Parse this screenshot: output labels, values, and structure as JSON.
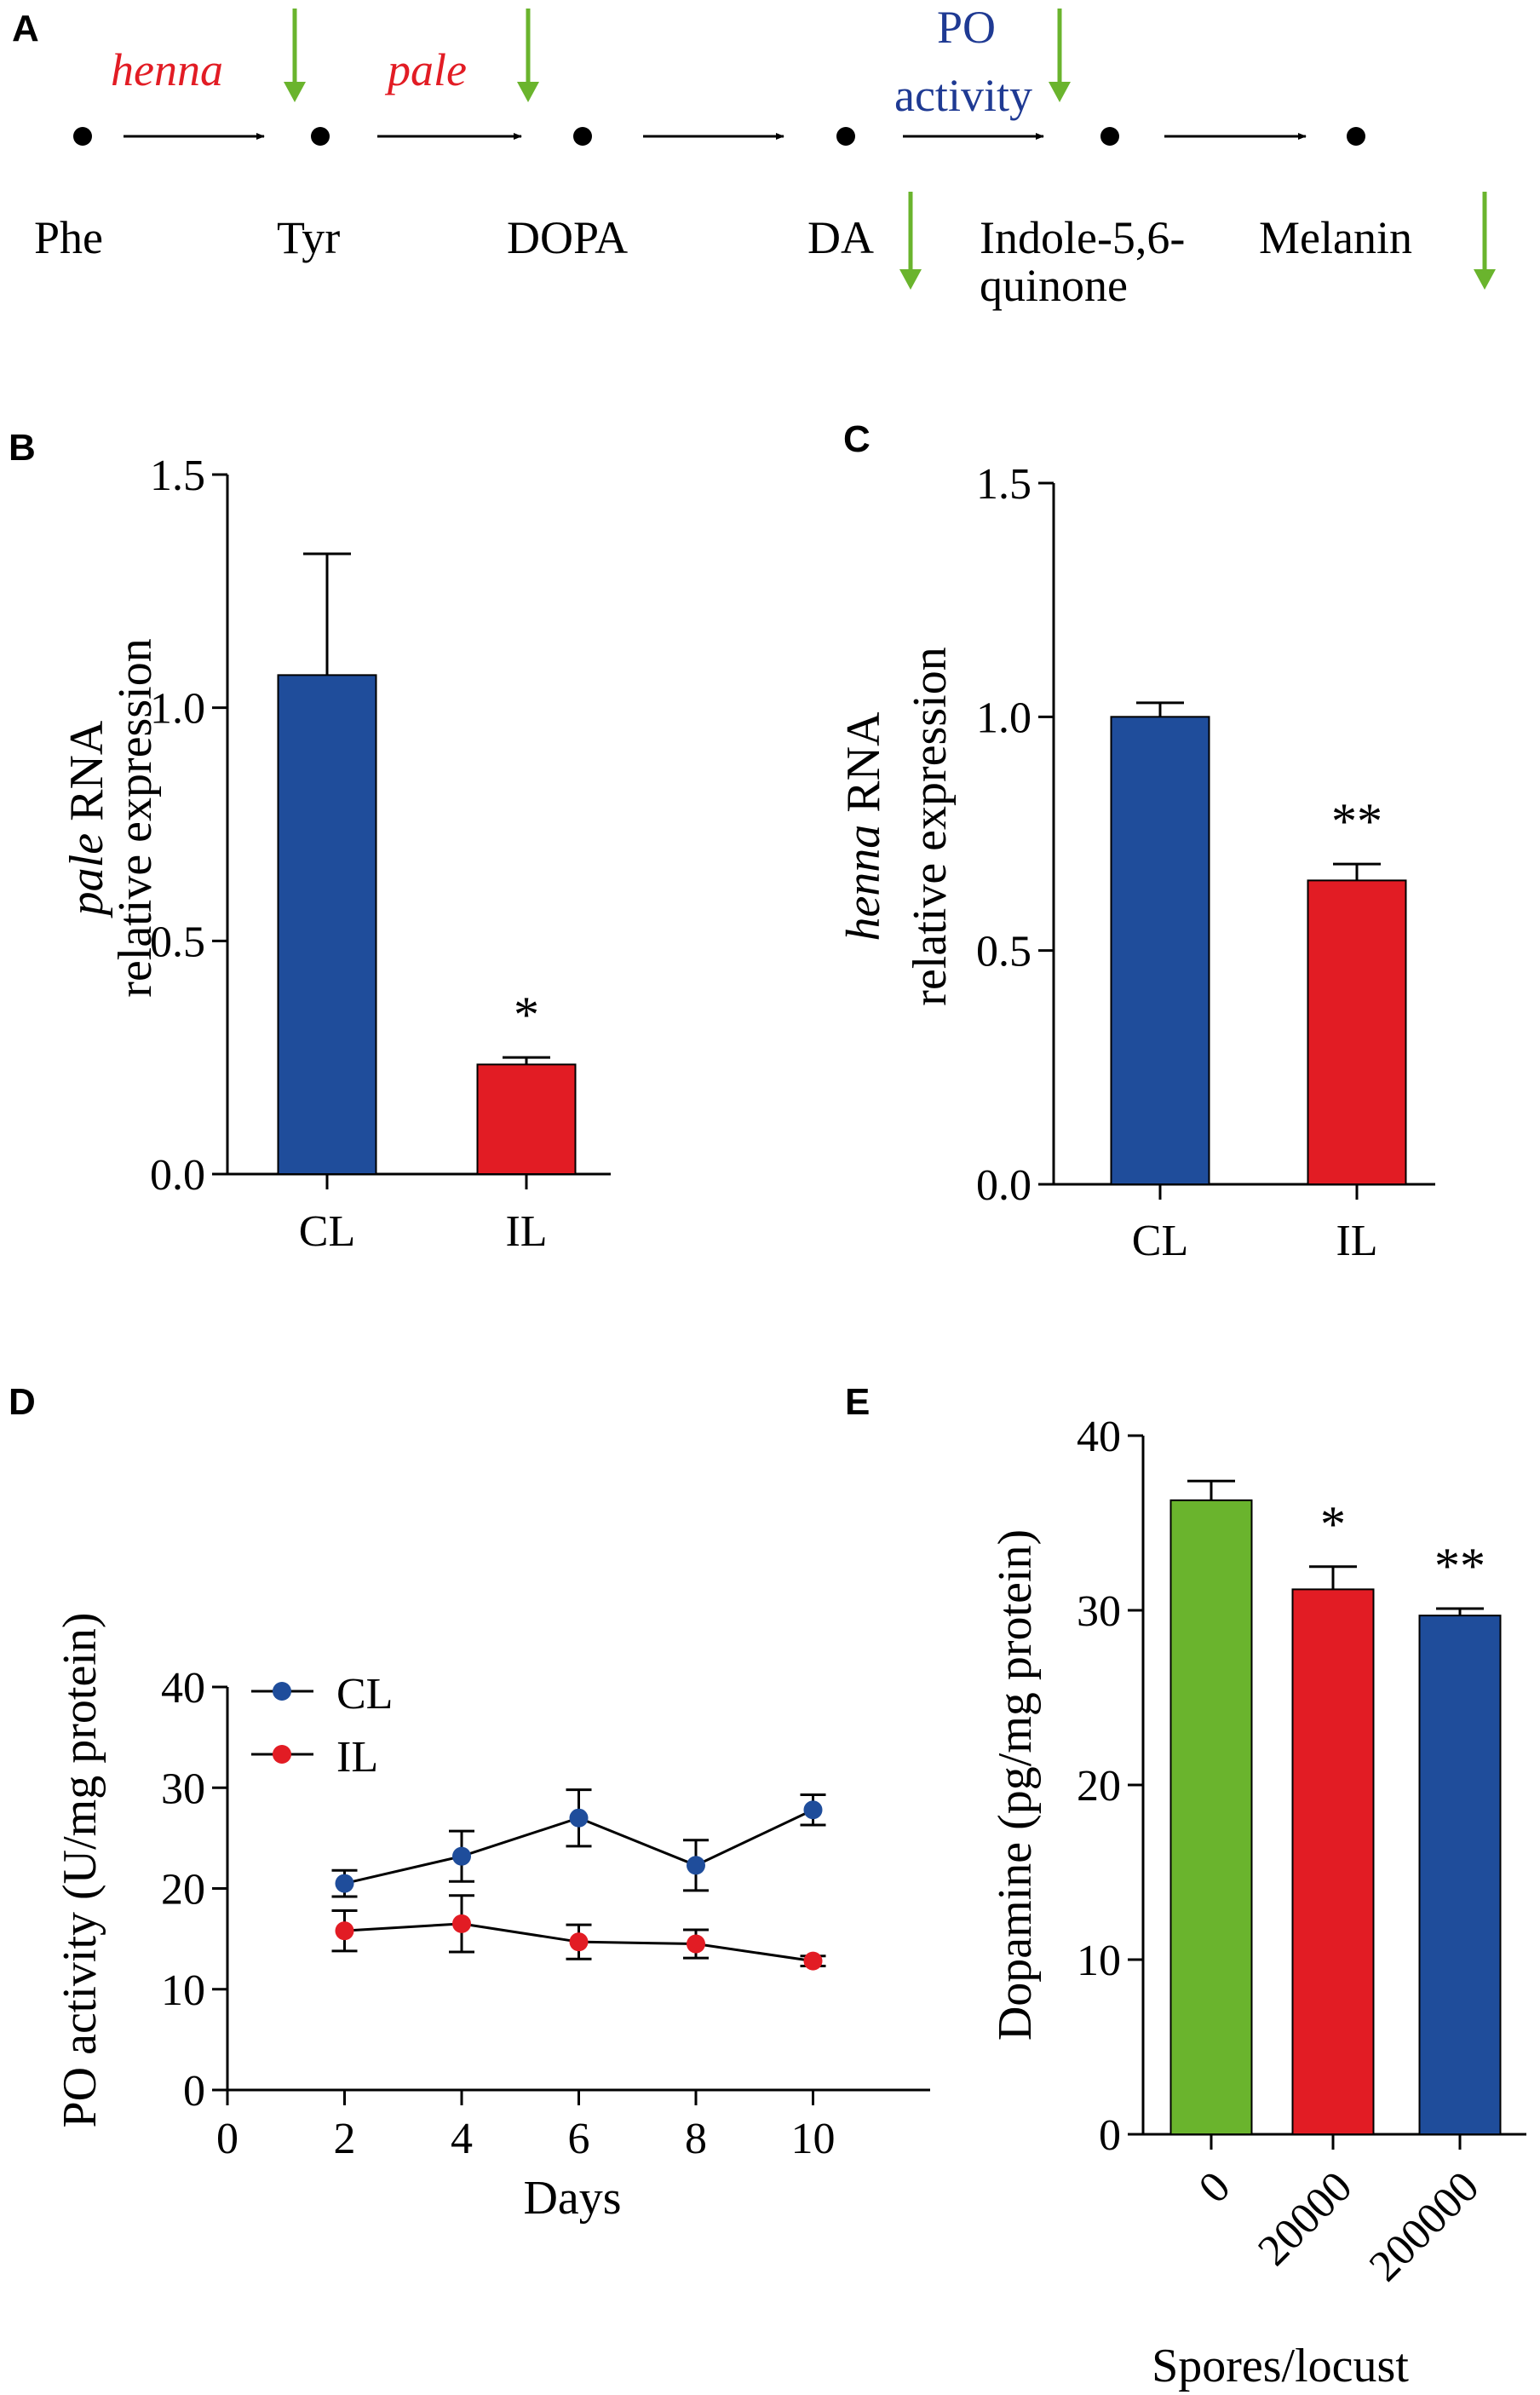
{
  "panels": {
    "A": "A",
    "B": "B",
    "C": "C",
    "D": "D",
    "E": "E"
  },
  "colors": {
    "blue": "#1f4d9b",
    "red": "#e21c24",
    "green": "#6ab42d",
    "arrow_green": "#6ab42d",
    "enzyme_red": "#e21c24",
    "enzyme_blue": "#1f3a93"
  },
  "pathway": {
    "compounds": [
      "Phe",
      "Tyr",
      "DOPA",
      "DA",
      "Indole-5,6-\nquinone",
      "Melanin"
    ],
    "compound_lines": [
      [
        "Phe"
      ],
      [
        "Tyr"
      ],
      [
        "DOPA"
      ],
      [
        "DA"
      ],
      [
        "Indole-5,6-",
        "quinone"
      ],
      [
        "Melanin"
      ]
    ],
    "enzymes": [
      {
        "step": 0,
        "lines": [
          "henna"
        ],
        "color": "red",
        "italic": true
      },
      {
        "step": 1,
        "lines": [
          "pale"
        ],
        "color": "red",
        "italic": true
      },
      {
        "step": 3,
        "lines": [
          "PO",
          "activity"
        ],
        "color": "blue",
        "italic": false
      }
    ],
    "down_arrows_on_steps": [
      0,
      1,
      3
    ],
    "down_arrows_on_compounds": [
      3,
      5
    ]
  },
  "chart_data": [
    {
      "id": "B",
      "type": "bar",
      "categories": [
        "CL",
        "IL"
      ],
      "values": [
        1.07,
        0.235
      ],
      "errors": [
        0.26,
        0.015
      ],
      "colors": [
        "blue",
        "red"
      ],
      "significance": [
        "",
        "*"
      ],
      "title": "",
      "xlabel": "",
      "ylabel_italic": "pale",
      "ylabel_rest": " RNA",
      "ylabel_line2": "relative expression",
      "ylim": [
        0,
        1.5
      ],
      "yticks": [
        "0.0",
        "0.5",
        "1.0",
        "1.5"
      ],
      "ytick_values": [
        0,
        0.5,
        1.0,
        1.5
      ]
    },
    {
      "id": "C",
      "type": "bar",
      "categories": [
        "CL",
        "IL"
      ],
      "values": [
        1.0,
        0.65
      ],
      "errors": [
        0.03,
        0.035
      ],
      "colors": [
        "blue",
        "red"
      ],
      "significance": [
        "",
        "**"
      ],
      "title": "",
      "xlabel": "",
      "ylabel_italic": "henna",
      "ylabel_rest": " RNA",
      "ylabel_line2": "relative expression",
      "ylim": [
        0,
        1.5
      ],
      "yticks": [
        "0.0",
        "0.5",
        "1.0",
        "1.5"
      ],
      "ytick_values": [
        0,
        0.5,
        1.0,
        1.5
      ]
    },
    {
      "id": "D",
      "type": "line",
      "x": [
        2,
        4,
        6,
        8,
        10
      ],
      "series": [
        {
          "name": "CL",
          "values": [
            20.5,
            23.2,
            27.0,
            22.3,
            27.8
          ],
          "errors": [
            1.3,
            2.5,
            2.8,
            2.5,
            1.5
          ],
          "color": "blue"
        },
        {
          "name": "IL",
          "values": [
            15.8,
            16.5,
            14.7,
            14.5,
            12.8
          ],
          "errors": [
            2.0,
            2.8,
            1.7,
            1.4,
            0.5
          ],
          "color": "red"
        }
      ],
      "title": "",
      "xlabel": "Days",
      "ylabel": "PO activity (U/mg protein)",
      "xlim": [
        0,
        12
      ],
      "ylim": [
        0,
        40
      ],
      "xticks": [
        "0",
        "2",
        "4",
        "6",
        "8",
        "10"
      ],
      "xtick_values": [
        0,
        2,
        4,
        6,
        8,
        10
      ],
      "yticks": [
        "0",
        "10",
        "20",
        "30",
        "40"
      ],
      "ytick_values": [
        0,
        10,
        20,
        30,
        40
      ],
      "legend": "top-left"
    },
    {
      "id": "E",
      "type": "bar",
      "categories": [
        "0",
        "20000",
        "200000"
      ],
      "values": [
        36.3,
        31.2,
        29.7
      ],
      "errors": [
        1.1,
        1.3,
        0.4
      ],
      "colors": [
        "green",
        "red",
        "blue"
      ],
      "significance": [
        "",
        "*",
        "**"
      ],
      "title": "",
      "xlabel": "Spores/locust",
      "ylabel": "Dopamine (pg/mg protein)",
      "ylim": [
        0,
        40
      ],
      "yticks": [
        "0",
        "10",
        "20",
        "30",
        "40"
      ],
      "ytick_values": [
        0,
        10,
        20,
        30,
        40
      ]
    }
  ]
}
